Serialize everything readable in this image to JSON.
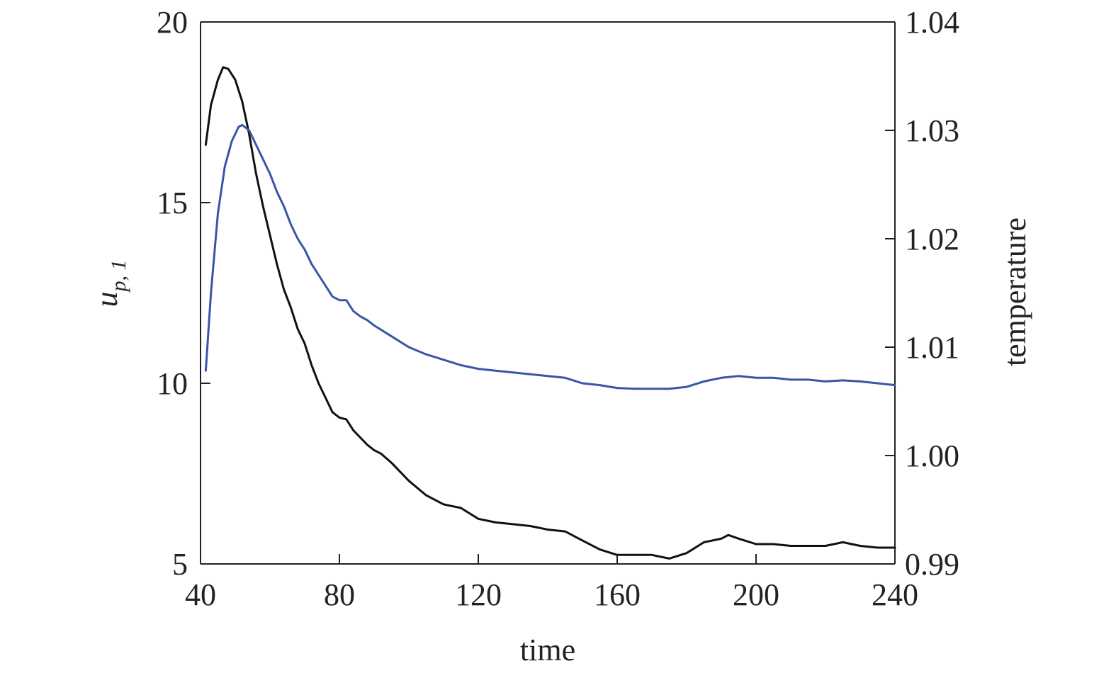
{
  "chart_data": {
    "type": "line",
    "title": "",
    "xlabel": "time",
    "ylabel_left": {
      "main": "u",
      "sub": "p, 1"
    },
    "ylabel_right": "temperature",
    "xlim": [
      40,
      240
    ],
    "ylim_left": [
      5,
      20
    ],
    "ylim_right": [
      0.99,
      1.04
    ],
    "x_ticks": [
      "40",
      "80",
      "120",
      "160",
      "200",
      "240"
    ],
    "y_left_ticks": [
      "5",
      "10",
      "15",
      "20"
    ],
    "y_right_ticks": [
      "0.99",
      "1.00",
      "1.01",
      "1.02",
      "1.03",
      "1.04"
    ],
    "grid": false,
    "series": [
      {
        "axis": "left",
        "color": "#111111",
        "points": [
          [
            41.5,
            16.6
          ],
          [
            43,
            17.7
          ],
          [
            45,
            18.4
          ],
          [
            46.5,
            18.75
          ],
          [
            48,
            18.7
          ],
          [
            50,
            18.4
          ],
          [
            52,
            17.8
          ],
          [
            54,
            16.9
          ],
          [
            56,
            15.8
          ],
          [
            58,
            14.9
          ],
          [
            60,
            14.1
          ],
          [
            62,
            13.3
          ],
          [
            64,
            12.6
          ],
          [
            66,
            12.1
          ],
          [
            68,
            11.5
          ],
          [
            70,
            11.1
          ],
          [
            72,
            10.5
          ],
          [
            74,
            10.0
          ],
          [
            76,
            9.6
          ],
          [
            78,
            9.2
          ],
          [
            80,
            9.05
          ],
          [
            82,
            9.0
          ],
          [
            84,
            8.7
          ],
          [
            86,
            8.5
          ],
          [
            88,
            8.3
          ],
          [
            90,
            8.15
          ],
          [
            92,
            8.05
          ],
          [
            95,
            7.8
          ],
          [
            100,
            7.3
          ],
          [
            105,
            6.9
          ],
          [
            110,
            6.65
          ],
          [
            115,
            6.55
          ],
          [
            120,
            6.25
          ],
          [
            125,
            6.15
          ],
          [
            130,
            6.1
          ],
          [
            135,
            6.05
          ],
          [
            140,
            5.95
          ],
          [
            145,
            5.9
          ],
          [
            150,
            5.65
          ],
          [
            155,
            5.4
          ],
          [
            160,
            5.25
          ],
          [
            165,
            5.25
          ],
          [
            170,
            5.25
          ],
          [
            175,
            5.15
          ],
          [
            180,
            5.3
          ],
          [
            185,
            5.6
          ],
          [
            190,
            5.7
          ],
          [
            192,
            5.8
          ],
          [
            195,
            5.7
          ],
          [
            200,
            5.55
          ],
          [
            205,
            5.55
          ],
          [
            210,
            5.5
          ],
          [
            215,
            5.5
          ],
          [
            220,
            5.5
          ],
          [
            225,
            5.6
          ],
          [
            230,
            5.5
          ],
          [
            235,
            5.45
          ],
          [
            240,
            5.45
          ]
        ]
      },
      {
        "axis": "left",
        "color": "#3a55a8",
        "points": [
          [
            41.5,
            10.35
          ],
          [
            43,
            12.5
          ],
          [
            45,
            14.7
          ],
          [
            47,
            16.0
          ],
          [
            49,
            16.7
          ],
          [
            51,
            17.1
          ],
          [
            52,
            17.15
          ],
          [
            54,
            17.0
          ],
          [
            56,
            16.6
          ],
          [
            58,
            16.2
          ],
          [
            60,
            15.8
          ],
          [
            62,
            15.3
          ],
          [
            64,
            14.9
          ],
          [
            66,
            14.4
          ],
          [
            68,
            14.0
          ],
          [
            70,
            13.7
          ],
          [
            72,
            13.3
          ],
          [
            74,
            13.0
          ],
          [
            76,
            12.7
          ],
          [
            78,
            12.4
          ],
          [
            80,
            12.3
          ],
          [
            82,
            12.3
          ],
          [
            84,
            12.0
          ],
          [
            86,
            11.85
          ],
          [
            88,
            11.75
          ],
          [
            90,
            11.6
          ],
          [
            95,
            11.3
          ],
          [
            100,
            11.0
          ],
          [
            105,
            10.8
          ],
          [
            110,
            10.65
          ],
          [
            115,
            10.5
          ],
          [
            120,
            10.4
          ],
          [
            125,
            10.35
          ],
          [
            130,
            10.3
          ],
          [
            135,
            10.25
          ],
          [
            140,
            10.2
          ],
          [
            145,
            10.15
          ],
          [
            150,
            10.0
          ],
          [
            155,
            9.95
          ],
          [
            160,
            9.87
          ],
          [
            165,
            9.85
          ],
          [
            170,
            9.85
          ],
          [
            175,
            9.85
          ],
          [
            180,
            9.9
          ],
          [
            185,
            10.05
          ],
          [
            190,
            10.15
          ],
          [
            195,
            10.2
          ],
          [
            200,
            10.15
          ],
          [
            205,
            10.15
          ],
          [
            210,
            10.1
          ],
          [
            215,
            10.1
          ],
          [
            220,
            10.05
          ],
          [
            225,
            10.08
          ],
          [
            230,
            10.05
          ],
          [
            235,
            10.0
          ],
          [
            240,
            9.95
          ]
        ]
      }
    ]
  }
}
